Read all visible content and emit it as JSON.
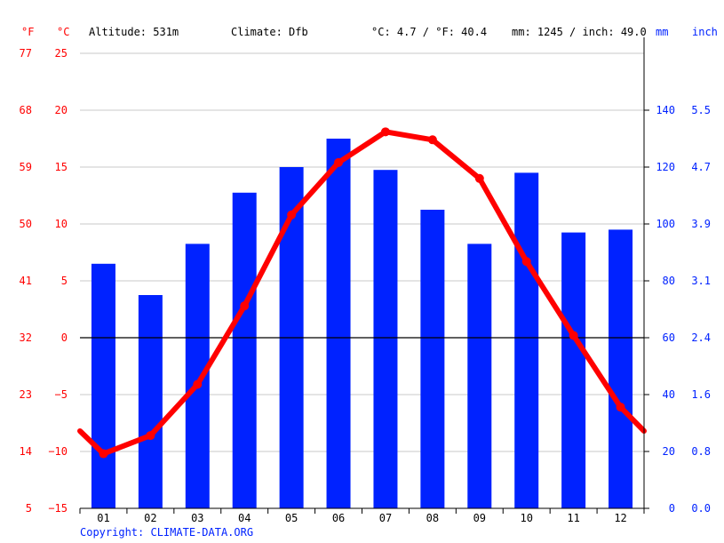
{
  "header": {
    "left_unit_f": "°F",
    "left_unit_c": "°C",
    "altitude": "Altitude: 531m",
    "climate": "Climate: Dfb",
    "temp_avg": "°C: 4.7 / °F: 40.4",
    "precip_avg": "mm: 1245 / inch: 49.0",
    "right_unit_mm": "mm",
    "right_unit_inch": "inch"
  },
  "footer": {
    "copyright": "Copyright: CLIMATE-DATA.ORG"
  },
  "colors": {
    "temperature": "#ff0000",
    "precipitation": "#0022ff",
    "axis_text_left": "#ff0000",
    "axis_text_right": "#0022ff"
  },
  "chart_data": {
    "type": "bar+line",
    "categories": [
      "01",
      "02",
      "03",
      "04",
      "05",
      "06",
      "07",
      "08",
      "09",
      "10",
      "11",
      "12"
    ],
    "series": [
      {
        "name": "mm",
        "type": "bar",
        "axis": "right",
        "values": [
          86,
          75,
          93,
          111,
          120,
          130,
          119,
          105,
          93,
          118,
          97,
          98
        ]
      },
      {
        "name": "°C",
        "type": "line",
        "axis": "left",
        "values": [
          -10.2,
          -8.6,
          -4.1,
          2.8,
          10.8,
          15.4,
          18.1,
          17.4,
          14.0,
          6.7,
          0.2,
          -6.1
        ]
      }
    ],
    "line_edge_values": {
      "start": -8.2,
      "end": -8.2
    },
    "left_axis_c": {
      "ticks": [
        25,
        20,
        15,
        10,
        5,
        0,
        -5,
        -10,
        -15
      ],
      "range": [
        -15,
        25
      ]
    },
    "left_axis_f": {
      "ticks": [
        "77",
        "68",
        "59",
        "50",
        "41",
        "32",
        "23",
        "14",
        "5"
      ]
    },
    "right_axis_mm": {
      "ticks": [
        "140",
        "120",
        "100",
        "80",
        "60",
        "40",
        "20",
        "0"
      ],
      "range": [
        0,
        160
      ]
    },
    "right_axis_inch": {
      "ticks": [
        "5.5",
        "4.7",
        "3.9",
        "3.1",
        "2.4",
        "1.6",
        "0.8",
        "0.0"
      ]
    },
    "grid": true
  }
}
